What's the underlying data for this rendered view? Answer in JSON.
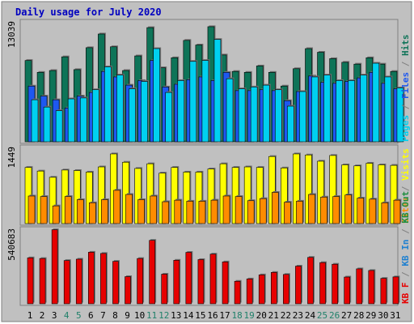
{
  "colors": {
    "background": "#ffffff",
    "frame": "#c0c0c0",
    "plot": "#c0c0c0",
    "title": "#0000c0",
    "weekday": "#000000",
    "weekend": "#20806a",
    "hits": "#0e7458",
    "files": "#1e58f0",
    "pages": "#00d0f0",
    "visits": "#ffff00",
    "sites": "#ff8c00",
    "kbin": "#1f80d0",
    "kbout": "#1d8e3e",
    "kbf": "#e60000"
  },
  "chart_data": {
    "type": "bar",
    "title": "Daily usage for July 2020",
    "categories": [
      "1",
      "2",
      "3",
      "4",
      "5",
      "6",
      "7",
      "8",
      "9",
      "10",
      "11",
      "12",
      "13",
      "14",
      "15",
      "16",
      "17",
      "18",
      "19",
      "20",
      "21",
      "22",
      "23",
      "24",
      "25",
      "26",
      "27",
      "28",
      "29",
      "30",
      "31"
    ],
    "weekend_days": [
      4,
      5,
      11,
      12,
      18,
      19,
      25,
      26
    ],
    "panels": [
      {
        "name": "hits",
        "ymax_label": "13039",
        "ymax": 13039,
        "series": [
          {
            "name": "Hits",
            "color_key": "hits",
            "values": [
              8900,
              7600,
              7800,
              9300,
              7900,
              10300,
              11800,
              10400,
              7800,
              9400,
              12500,
              8100,
              9200,
              11100,
              10600,
              12600,
              9500,
              7700,
              7600,
              8300,
              7600,
              6100,
              8000,
              10200,
              9800,
              9100,
              8700,
              8500,
              9200,
              8500,
              7700
            ]
          },
          {
            "name": "Files",
            "color_key": "files",
            "values": [
              6100,
              5000,
              4600,
              3700,
              5000,
              5400,
              7700,
              7100,
              6200,
              6700,
              8900,
              6000,
              6300,
              6800,
              7100,
              6700,
              7600,
              5600,
              5600,
              5700,
              5600,
              4500,
              5500,
              7200,
              6500,
              6400,
              6600,
              7000,
              7600,
              6400,
              5800
            ]
          },
          {
            "name": "Pages",
            "color_key": "pages",
            "values": [
              4600,
              3800,
              3400,
              4700,
              4800,
              5700,
              8200,
              7300,
              5800,
              6600,
              10200,
              5400,
              6700,
              8800,
              8900,
              11200,
              6900,
              5800,
              6000,
              6200,
              5700,
              3900,
              5500,
              7100,
              7300,
              6700,
              6700,
              7300,
              8600,
              7100,
              5900
            ]
          }
        ]
      },
      {
        "name": "visits",
        "ymax_label": "1449",
        "ymax": 1449,
        "series": [
          {
            "name": "Visits",
            "color_key": "visits",
            "values": [
              1080,
              1010,
              890,
              1030,
              1020,
              990,
              1090,
              1340,
              1180,
              1060,
              1150,
              970,
              1080,
              990,
              990,
              1050,
              1150,
              1080,
              1090,
              1080,
              1290,
              1070,
              1340,
              1320,
              1200,
              1310,
              1130,
              1110,
              1160,
              1130,
              1120
            ]
          },
          {
            "name": "Sites",
            "color_key": "sites",
            "values": [
              530,
              520,
              340,
              520,
              460,
              400,
              460,
              640,
              560,
              460,
              530,
              420,
              450,
              430,
              430,
              450,
              530,
              520,
              440,
              480,
              600,
              410,
              430,
              560,
              510,
              520,
              550,
              490,
              470,
              400,
              450
            ]
          }
        ]
      },
      {
        "name": "kbytes",
        "ymax_label": "540683",
        "ymax": 540683,
        "series": [
          {
            "name": "KB F",
            "color_key": "kbf",
            "values": [
              337000,
              332000,
              543000,
              317000,
              327000,
              378000,
              369000,
              311000,
              199000,
              332000,
              465000,
              217000,
              319000,
              377000,
              324000,
              364000,
              307000,
              165000,
              182000,
              212000,
              230000,
              215000,
              276000,
              340000,
              302000,
              290000,
              196000,
              256000,
              244000,
              186000,
              197000
            ]
          }
        ]
      }
    ],
    "side_labels": {
      "hits": [
        "Pages",
        "Files",
        "Hits"
      ],
      "visits": [
        "Sites",
        "Visits"
      ],
      "kbytes": [
        "KB F",
        "KB In",
        "KB Out"
      ]
    }
  }
}
